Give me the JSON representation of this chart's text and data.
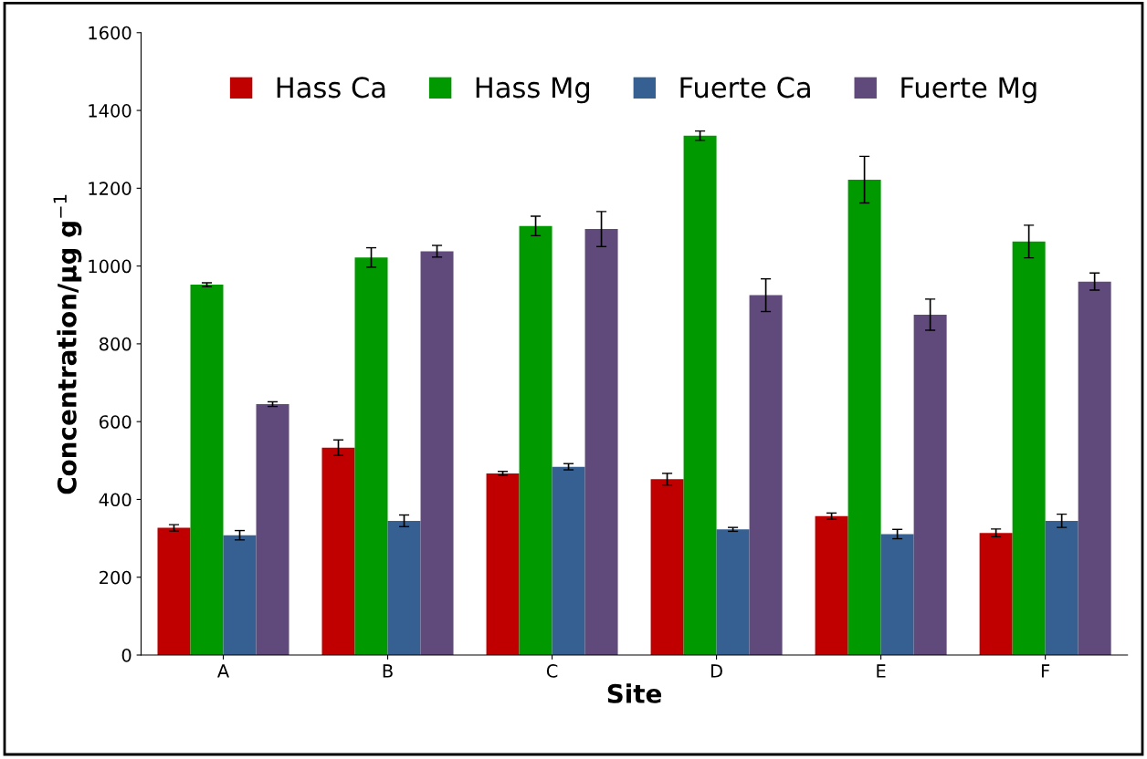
{
  "chart_data": {
    "type": "bar",
    "xlabel": "Site",
    "ylabel": "Concentration/µg g$^{−1}$",
    "categories": [
      "A",
      "B",
      "C",
      "D",
      "E",
      "F"
    ],
    "series": [
      {
        "name": "Hass Ca",
        "color": "#c00000",
        "values": [
          327,
          533,
          467,
          452,
          357,
          314
        ],
        "errors": [
          8,
          20,
          5,
          15,
          8,
          10
        ]
      },
      {
        "name": "Hass Mg",
        "color": "#009900",
        "values": [
          952,
          1022,
          1103,
          1335,
          1222,
          1063
        ],
        "errors": [
          5,
          25,
          25,
          12,
          60,
          42
        ]
      },
      {
        "name": "Fuerte Ca",
        "color": "#376092",
        "values": [
          308,
          345,
          484,
          323,
          311,
          345
        ],
        "errors": [
          12,
          15,
          8,
          5,
          12,
          17
        ]
      },
      {
        "name": "Fuerte Mg",
        "color": "#604a7b",
        "values": [
          645,
          1038,
          1095,
          925,
          875,
          960
        ],
        "errors": [
          6,
          15,
          45,
          42,
          40,
          22
        ]
      }
    ],
    "ylim": [
      0,
      1600
    ],
    "yticks": [
      0,
      200,
      400,
      600,
      800,
      1000,
      1200,
      1400,
      1600
    ],
    "grid": false,
    "legend": "top"
  }
}
